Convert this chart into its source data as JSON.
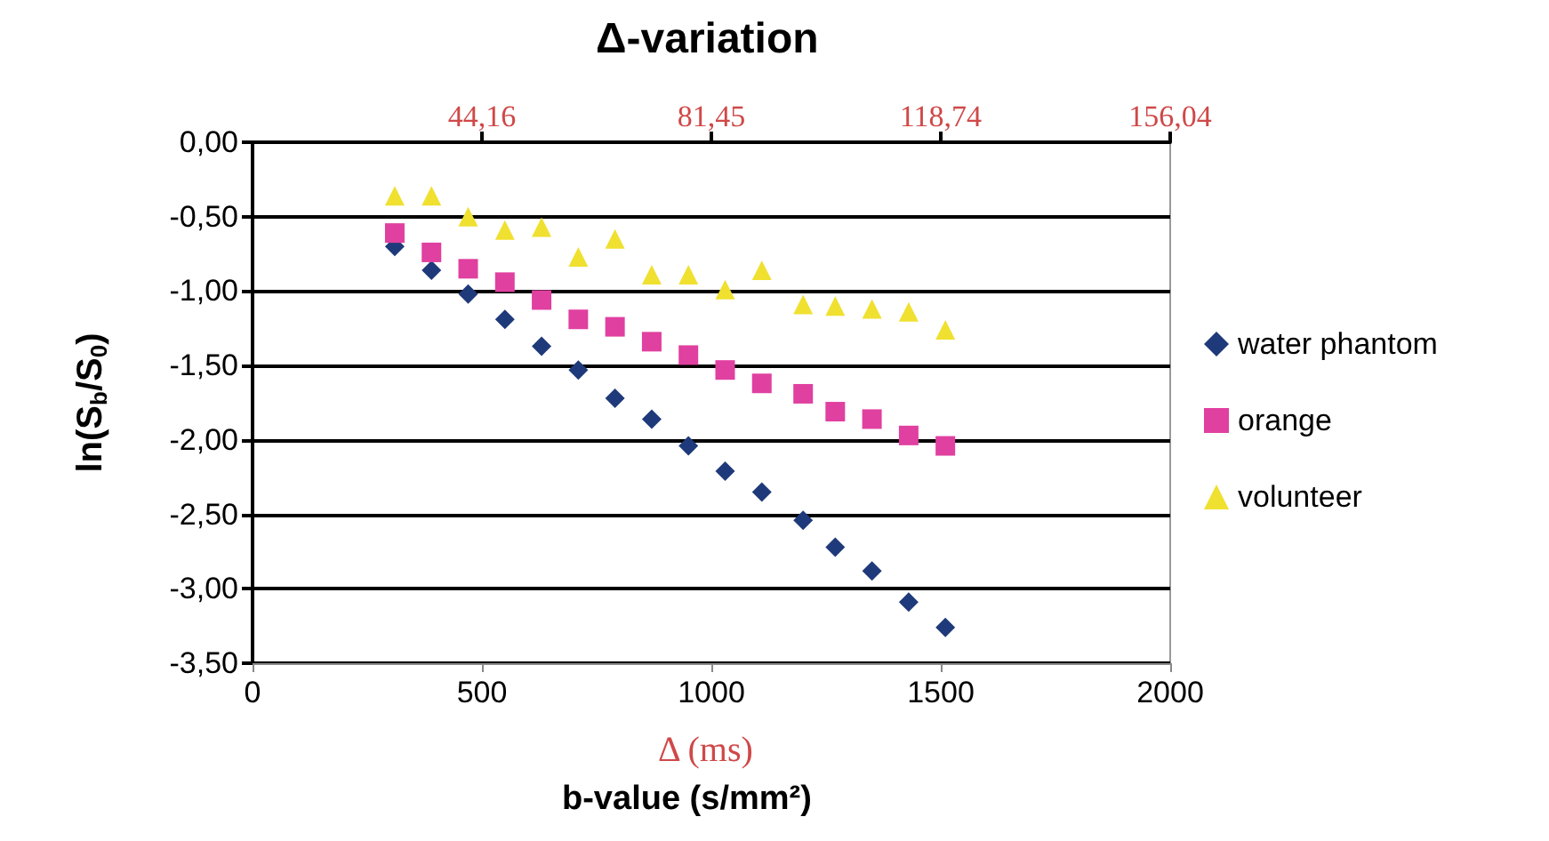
{
  "chart_data": {
    "type": "scatter",
    "title": "Δ-variation",
    "xlabel": "b-value (s/mm²)",
    "ylabel": "ln(S$_{b}$/S$_{0}$)",
    "x2label": "Δ (ms)",
    "x": [
      310,
      390,
      470,
      550,
      630,
      710,
      790,
      870,
      950,
      1030,
      1110,
      1200,
      1270,
      1350,
      1430,
      1510
    ],
    "series": [
      {
        "name": "water phantom",
        "color": "#1f3a7a",
        "marker": "diamond",
        "values": [
          -0.7,
          -0.86,
          -1.02,
          -1.19,
          -1.37,
          -1.53,
          -1.72,
          -1.86,
          -2.04,
          -2.21,
          -2.35,
          -2.54,
          -2.72,
          -2.88,
          -3.09,
          -3.26
        ]
      },
      {
        "name": "orange",
        "color": "#e040a0",
        "marker": "square",
        "values": [
          -0.61,
          -0.74,
          -0.85,
          -0.94,
          -1.06,
          -1.19,
          -1.24,
          -1.34,
          -1.43,
          -1.53,
          -1.62,
          -1.69,
          -1.81,
          -1.86,
          -1.97,
          -2.04
        ]
      },
      {
        "name": "volunteer",
        "color": "#f0e030",
        "marker": "triangle",
        "values": [
          -0.36,
          -0.36,
          -0.5,
          -0.59,
          -0.57,
          -0.77,
          -0.65,
          -0.89,
          -0.89,
          -0.99,
          -0.86,
          -1.09,
          -1.1,
          -1.12,
          -1.14,
          -1.26
        ]
      }
    ],
    "xlim": [
      0,
      2000
    ],
    "xticks": [
      0,
      500,
      1000,
      1500,
      2000
    ],
    "x2lim": [
      6.87,
      156.04
    ],
    "x2ticks": [
      {
        "value": 44.16,
        "label": "44,16"
      },
      {
        "value": 81.45,
        "label": "81,45"
      },
      {
        "value": 118.74,
        "label": "118,74"
      },
      {
        "value": 156.04,
        "label": "156,04"
      }
    ],
    "ylim": [
      -3.5,
      0
    ],
    "yticks": [
      {
        "value": -3.5,
        "label": "-3,50"
      },
      {
        "value": -3,
        "label": "-3,00"
      },
      {
        "value": -2.5,
        "label": "-2,50"
      },
      {
        "value": -2,
        "label": "-2,00"
      },
      {
        "value": -1.5,
        "label": "-1,50"
      },
      {
        "value": -1,
        "label": "-1,00"
      },
      {
        "value": -0.5,
        "label": "-0,50"
      },
      {
        "value": 0,
        "label": "0,00"
      }
    ],
    "grid": "y",
    "legend": "right"
  }
}
